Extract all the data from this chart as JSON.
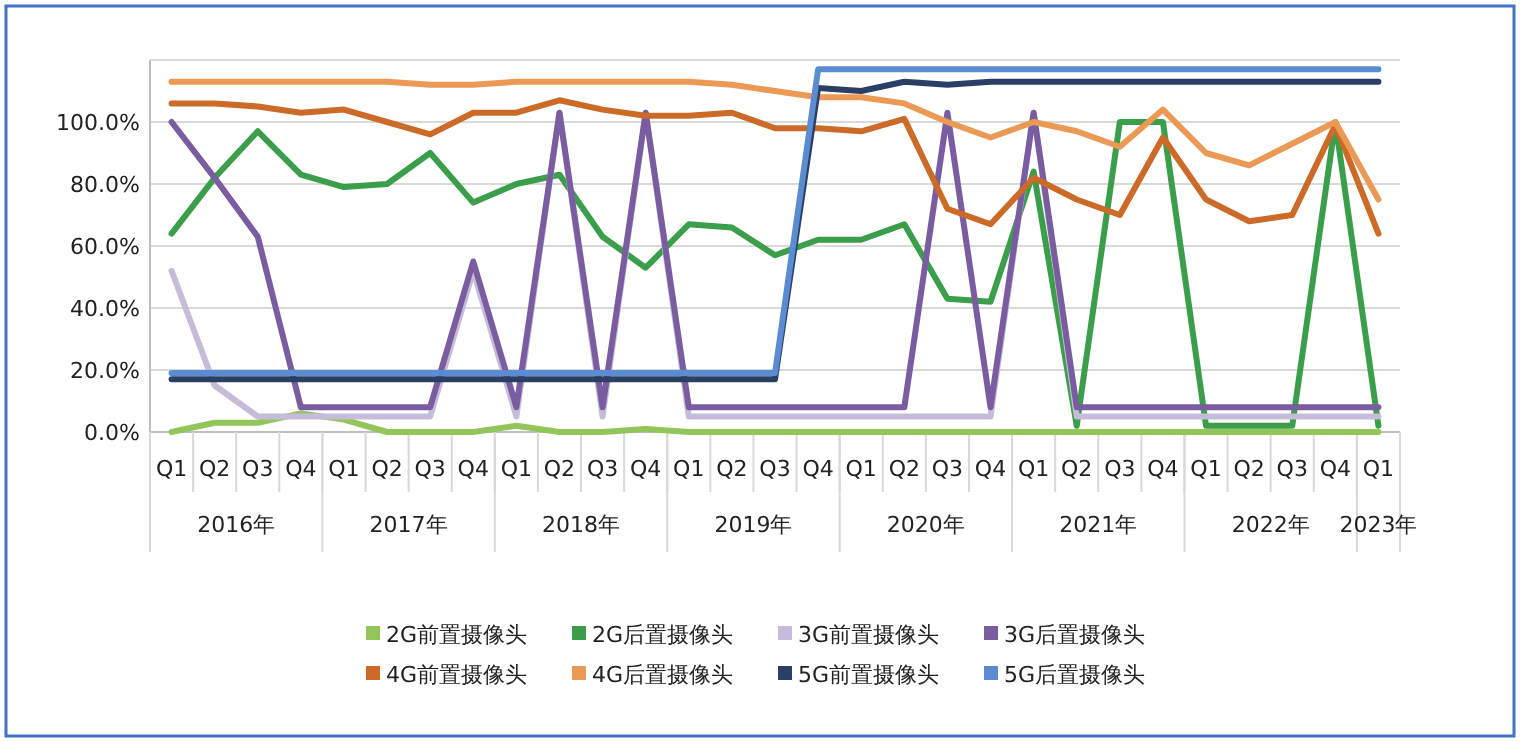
{
  "chart_data": {
    "type": "line",
    "categories": [
      "Q1",
      "Q2",
      "Q3",
      "Q4",
      "Q1",
      "Q2",
      "Q3",
      "Q4",
      "Q1",
      "Q2",
      "Q3",
      "Q4",
      "Q1",
      "Q2",
      "Q3",
      "Q4",
      "Q1",
      "Q2",
      "Q3",
      "Q4",
      "Q1",
      "Q2",
      "Q3",
      "Q4",
      "Q1",
      "Q2",
      "Q3",
      "Q4",
      "Q1"
    ],
    "annotations": [
      "2016年",
      "2017年",
      "2018年",
      "2019年",
      "2020年",
      "2021年",
      "2022年",
      "2023年"
    ],
    "ylim": [
      0,
      120
    ],
    "yticks": [
      {
        "value": 0,
        "label": "0.0%"
      },
      {
        "value": 20,
        "label": "20.0%"
      },
      {
        "value": 40,
        "label": "40.0%"
      },
      {
        "value": 60,
        "label": "60.0%"
      },
      {
        "value": 80,
        "label": "80.0%"
      },
      {
        "value": 100,
        "label": "100.0%"
      }
    ],
    "grid": "y",
    "legend": "bottom",
    "marker": "none",
    "line_style": "solid",
    "series": [
      {
        "name": "2G前置摄像头",
        "color": "#92c65a",
        "values": [
          0,
          3,
          3,
          6,
          4,
          0,
          0,
          0,
          2,
          0,
          0,
          1,
          0,
          0,
          0,
          0,
          0,
          0,
          0,
          0,
          0,
          0,
          0,
          0,
          0,
          0,
          0,
          0,
          0
        ]
      },
      {
        "name": "2G后置摄像头",
        "color": "#3a9e4a",
        "values": [
          64,
          82,
          97,
          83,
          79,
          80,
          90,
          74,
          80,
          83,
          63,
          53,
          67,
          66,
          57,
          62,
          62,
          67,
          43,
          42,
          84,
          2,
          100,
          100,
          2,
          2,
          2,
          100,
          2
        ]
      },
      {
        "name": "3G前置摄像头",
        "color": "#c4bcd8",
        "values": [
          52,
          15,
          5,
          5,
          5,
          5,
          5,
          52,
          5,
          103,
          5,
          103,
          5,
          5,
          5,
          5,
          5,
          5,
          5,
          5,
          103,
          5,
          5,
          5,
          5,
          5,
          5,
          5,
          5
        ]
      },
      {
        "name": "3G后置摄像头",
        "color": "#7a5ca0",
        "values": [
          100,
          82,
          63,
          8,
          8,
          8,
          8,
          55,
          8,
          103,
          8,
          103,
          8,
          8,
          8,
          8,
          8,
          8,
          103,
          8,
          103,
          8,
          8,
          8,
          8,
          8,
          8,
          8,
          8
        ]
      },
      {
        "name": "4G前置摄像头",
        "color": "#cc6a28",
        "values": [
          106,
          106,
          105,
          103,
          104,
          100,
          96,
          103,
          103,
          107,
          104,
          102,
          102,
          103,
          98,
          98,
          97,
          101,
          72,
          67,
          82,
          75,
          70,
          95,
          75,
          68,
          70,
          99,
          64
        ]
      },
      {
        "name": "4G后置摄像头",
        "color": "#eb9a55",
        "values": [
          113,
          113,
          113,
          113,
          113,
          113,
          112,
          112,
          113,
          113,
          113,
          113,
          113,
          112,
          110,
          108,
          108,
          106,
          100,
          95,
          100,
          97,
          92,
          104,
          90,
          86,
          93,
          100,
          75
        ]
      },
      {
        "name": "5G前置摄像头",
        "color": "#2b3f66",
        "values": [
          17,
          17,
          17,
          17,
          17,
          17,
          17,
          17,
          17,
          17,
          17,
          17,
          17,
          17,
          17,
          111,
          110,
          113,
          112,
          113,
          113,
          113,
          113,
          113,
          113,
          113,
          113,
          113,
          113
        ]
      },
      {
        "name": "5G后置摄像头",
        "color": "#5b8bd0",
        "values": [
          19,
          19,
          19,
          19,
          19,
          19,
          19,
          19,
          19,
          19,
          19,
          19,
          19,
          19,
          19,
          117,
          117,
          117,
          117,
          117,
          117,
          117,
          117,
          117,
          117,
          117,
          117,
          117,
          117
        ]
      }
    ]
  }
}
